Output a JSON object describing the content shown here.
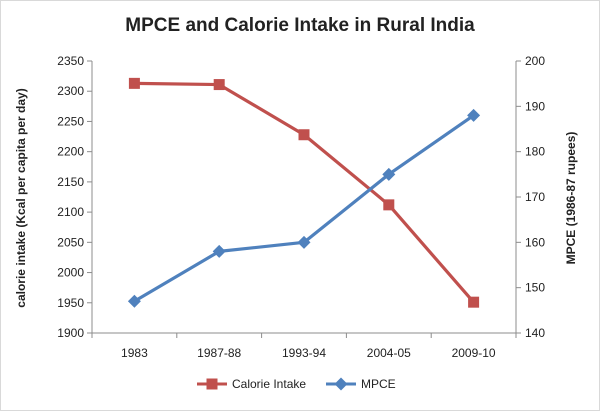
{
  "chart_data": {
    "type": "line",
    "title": "MPCE and Calorie Intake in Rural India",
    "categories": [
      "1983",
      "1987-88",
      "1993-94",
      "2004-05",
      "2009-10"
    ],
    "y_left": {
      "label": "calorie intake (Kcal per capita per day)",
      "range": [
        1900,
        2350
      ],
      "ticks": [
        1900,
        1950,
        2000,
        2050,
        2100,
        2150,
        2200,
        2250,
        2300,
        2350
      ]
    },
    "y_right": {
      "label": "MPCE (1986-87 rupees)",
      "range": [
        140,
        200
      ],
      "ticks": [
        140,
        150,
        160,
        170,
        180,
        190,
        200
      ]
    },
    "series": [
      {
        "name": "Calorie Intake",
        "axis": "left",
        "marker": "square",
        "color": "#c0504d",
        "values": [
          2313,
          2311,
          2228,
          2112,
          1951
        ]
      },
      {
        "name": "MPCE",
        "axis": "right",
        "marker": "diamond",
        "color": "#4f81bd",
        "values": [
          147,
          158,
          160,
          175,
          188
        ]
      }
    ],
    "legend_position": "bottom",
    "grid": false
  }
}
